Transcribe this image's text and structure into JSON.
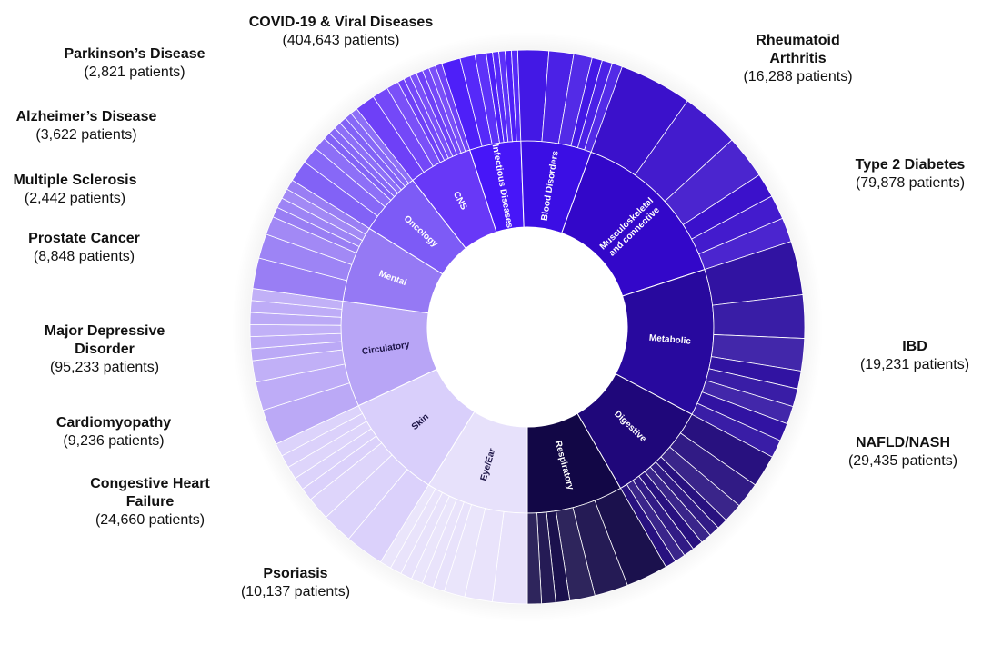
{
  "chart_data": {
    "type": "sunburst",
    "categories": [
      {
        "name": "Musculoskeletal and connective",
        "label_lines": [
          "Musculoskeletal",
          "and connective"
        ],
        "color": "#3307c9",
        "children": 6
      },
      {
        "name": "Metabolic",
        "label_lines": [
          "Metabolic"
        ],
        "color": "#28099e",
        "children": 8
      },
      {
        "name": "Digestive",
        "label_lines": [
          "Digestive"
        ],
        "color": "#1f077a",
        "children": 10
      },
      {
        "name": "Respiratory",
        "label_lines": [
          "Respiratory"
        ],
        "color": "#120746",
        "children": 6
      },
      {
        "name": "Eye/Ear",
        "label_lines": [
          "Eye/Ear"
        ],
        "color": "#e7e1fb",
        "children": 9,
        "dark_label": true
      },
      {
        "name": "Skin",
        "label_lines": [
          "Skin"
        ],
        "color": "#d9cffb",
        "children": 8,
        "dark_label": true
      },
      {
        "name": "Circulatory",
        "label_lines": [
          "Circulatory"
        ],
        "color": "#b8a5f6",
        "children": 9,
        "dark_label": true
      },
      {
        "name": "Mental",
        "label_lines": [
          "Mental"
        ],
        "color": "#9579f4",
        "children": 7
      },
      {
        "name": "Oncology",
        "label_lines": [
          "Oncology"
        ],
        "color": "#7d5bf6",
        "children": 9
      },
      {
        "name": "CNS",
        "label_lines": [
          "CNS"
        ],
        "color": "#6838f7",
        "children": 10
      },
      {
        "name": "Infectious Diseases",
        "label_lines": [
          "Infectious Diseases"
        ],
        "color": "#4716f8",
        "children": 8
      },
      {
        "name": "Blood Disorders",
        "label_lines": [
          "Blood Disorders"
        ],
        "color": "#3b0ee4",
        "children": 6
      }
    ],
    "callouts": [
      {
        "name": "COVID-19 & Viral Diseases",
        "count": "(404,643 patients)"
      },
      {
        "name": "Parkinson’s Disease",
        "count": "(2,821 patients)"
      },
      {
        "name": "Alzheimer’s Disease",
        "count": "(3,622 patients)"
      },
      {
        "name": "Multiple Sclerosis",
        "count": "(2,442 patients)"
      },
      {
        "name": "Prostate Cancer",
        "count": "(8,848 patients)"
      },
      {
        "name": "Major Depressive Disorder",
        "name_lines": [
          "Major Depressive",
          "Disorder"
        ],
        "count": "(95,233 patients)"
      },
      {
        "name": "Cardiomyopathy",
        "count": "(9,236 patients)"
      },
      {
        "name": "Congestive Heart Failure",
        "name_lines": [
          "Congestive Heart",
          "Failure"
        ],
        "count": "(24,660 patients)"
      },
      {
        "name": "Psoriasis",
        "count": "(10,137 patients)"
      },
      {
        "name": "Rheumatoid Arthritis",
        "name_lines": [
          "Rheumatoid",
          "Arthritis"
        ],
        "count": "(16,288 patients)"
      },
      {
        "name": "Type 2 Diabetes",
        "count": "(79,878 patients)"
      },
      {
        "name": "IBD",
        "count": "(19,231 patients)"
      },
      {
        "name": "NAFLD/NASH",
        "count": "(29,435 patients)"
      }
    ]
  }
}
